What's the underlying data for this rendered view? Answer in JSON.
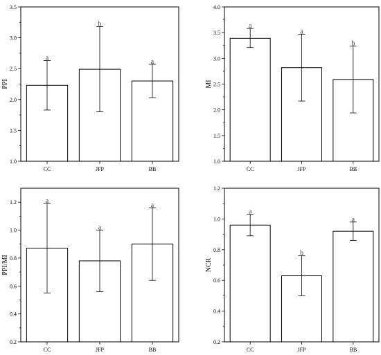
{
  "chart_data": [
    {
      "type": "bar",
      "categories": [
        "CC",
        "JFP",
        "BB"
      ],
      "values": [
        2.23,
        2.49,
        2.3
      ],
      "errors": [
        [
          1.83,
          2.63
        ],
        [
          1.8,
          3.18
        ],
        [
          2.03,
          2.57
        ]
      ],
      "significance": [
        "a",
        "b",
        "a"
      ],
      "ylabel": "PPI",
      "ylim": [
        1.0,
        3.5
      ],
      "yticks": [
        "1.0",
        "1.5",
        "2.0",
        "2.5",
        "3.0",
        "3.5"
      ],
      "title": "",
      "xlabel": "",
      "grid": false
    },
    {
      "type": "bar",
      "categories": [
        "CC",
        "JFP",
        "BB"
      ],
      "values": [
        3.39,
        2.82,
        2.59
      ],
      "errors": [
        [
          3.21,
          3.58
        ],
        [
          2.17,
          3.47
        ],
        [
          1.94,
          3.24
        ]
      ],
      "significance": [
        "a",
        "a",
        "b"
      ],
      "ylabel": "MI",
      "ylim": [
        1.0,
        4.0
      ],
      "yticks": [
        "1.0",
        "1.5",
        "2.0",
        "2.5",
        "3.0",
        "3.5",
        "4.0"
      ],
      "title": "",
      "xlabel": "",
      "grid": false
    },
    {
      "type": "bar",
      "categories": [
        "CC",
        "JFP",
        "BB"
      ],
      "values": [
        0.87,
        0.78,
        0.9
      ],
      "errors": [
        [
          0.55,
          1.19
        ],
        [
          0.56,
          1.0
        ],
        [
          0.64,
          1.16
        ]
      ],
      "significance": [
        "a",
        "a",
        "a"
      ],
      "ylabel": "PPI/MI",
      "ylim": [
        0.2,
        1.3
      ],
      "yticks": [
        "0.2",
        "0.4",
        "0.6",
        "0.8",
        "1.0",
        "1.2"
      ],
      "title": "",
      "xlabel": "",
      "grid": false
    },
    {
      "type": "bar",
      "categories": [
        "CC",
        "JFP",
        "BB"
      ],
      "values": [
        0.96,
        0.63,
        0.92
      ],
      "errors": [
        [
          0.89,
          1.03
        ],
        [
          0.5,
          0.76
        ],
        [
          0.86,
          0.98
        ]
      ],
      "significance": [
        "a",
        "b",
        "a"
      ],
      "ylabel": "NCR",
      "ylim": [
        0.2,
        1.2
      ],
      "yticks": [
        "0.2",
        "0.4",
        "0.6",
        "0.8",
        "1.0",
        "1.2"
      ],
      "title": "",
      "xlabel": "",
      "grid": false
    }
  ]
}
